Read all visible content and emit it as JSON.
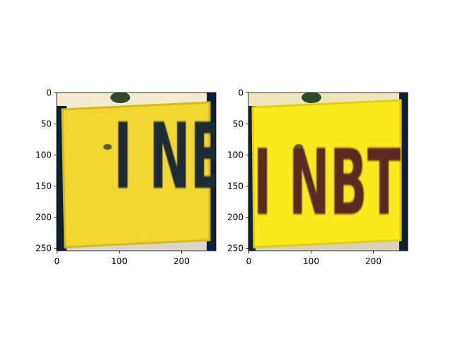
{
  "panels": [
    {
      "id": "left",
      "plate_text": "I NBT",
      "colors": {
        "plate": "#f2d631",
        "plate_edge": "#d7b91e",
        "text": "#1e2b33",
        "frame": "#0d1f36",
        "top_strip": "#f4ecd0",
        "bottom_strip": "#dcd6c8"
      },
      "x_ticks": [
        "0",
        "100",
        "200"
      ],
      "y_ticks": [
        "0",
        "50",
        "100",
        "150",
        "200",
        "250"
      ]
    },
    {
      "id": "right",
      "plate_text": "I NBT",
      "colors": {
        "plate": "#f9ea1e",
        "plate_edge": "#e0cf12",
        "text": "#5a2a24",
        "frame": "#102033",
        "top_strip": "#eee6bc",
        "bottom_strip": "#d8d2bc"
      },
      "x_ticks": [
        "0",
        "100",
        "200"
      ],
      "y_ticks": [
        "0",
        "50",
        "100",
        "150",
        "200",
        "250"
      ]
    }
  ]
}
